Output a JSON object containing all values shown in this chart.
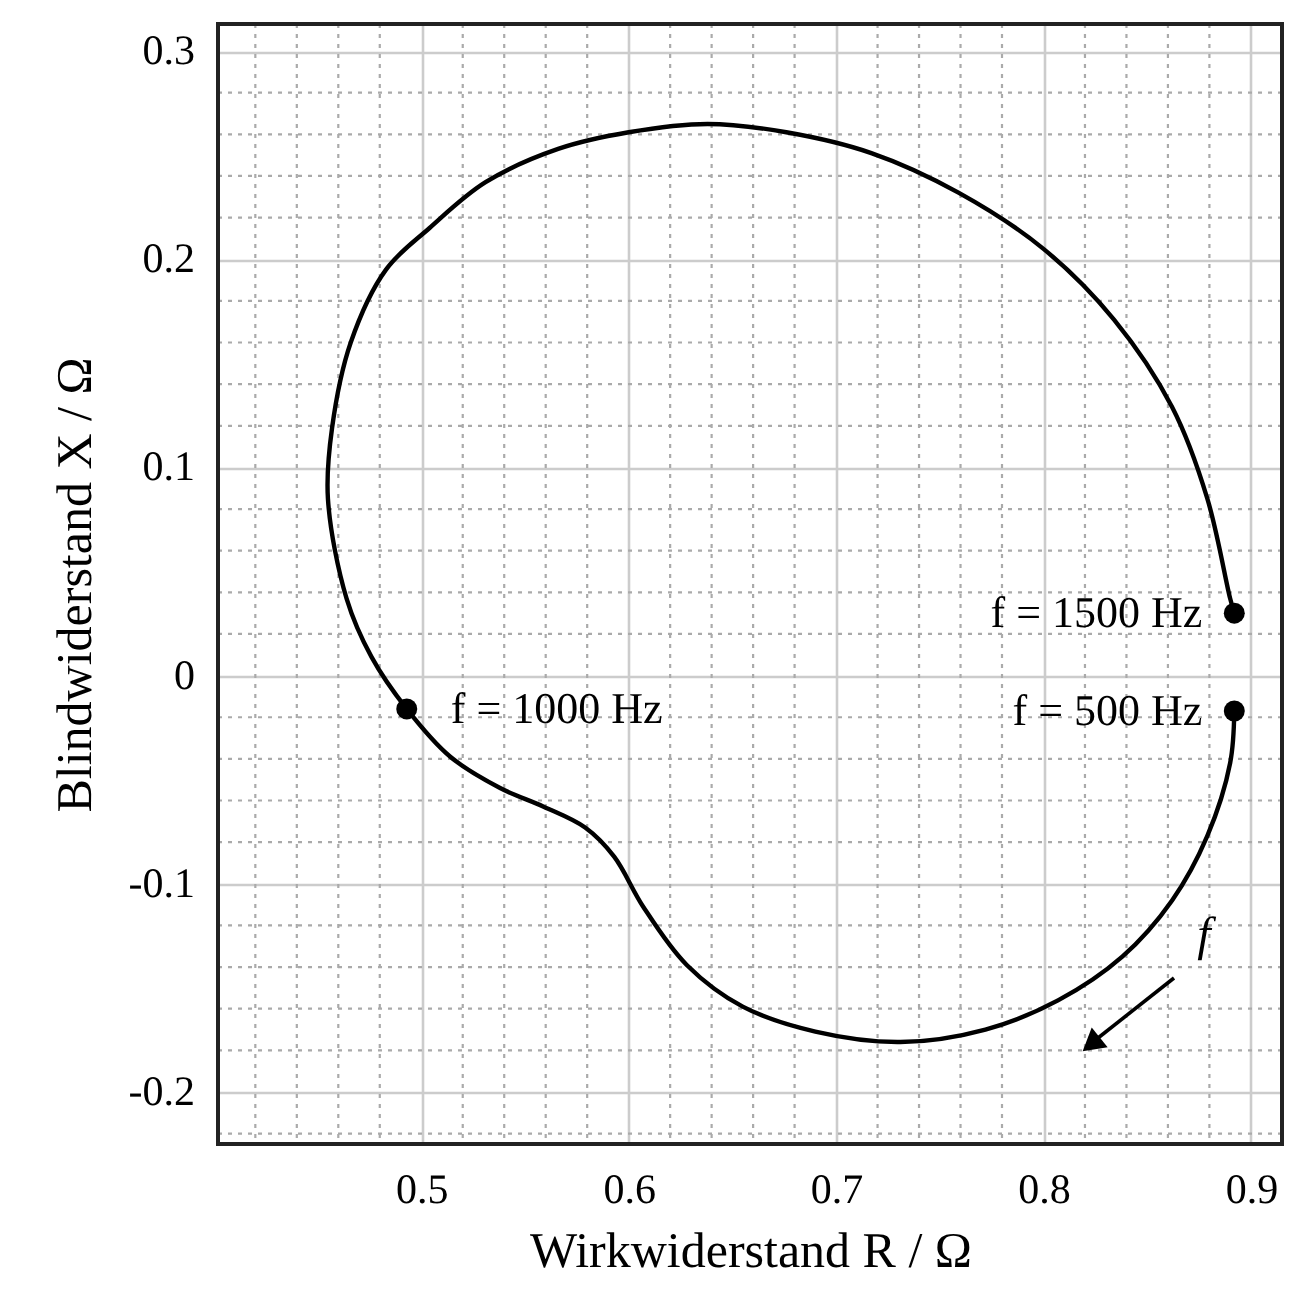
{
  "chart_data": {
    "type": "line",
    "xlabel": "Wirkwiderstand R / Ω",
    "ylabel": "Blindwiderstand X / Ω",
    "xlim": [
      0.402,
      0.915
    ],
    "ylim": [
      -0.225,
      0.313
    ],
    "xticks": [
      0.5,
      0.6,
      0.7,
      0.8,
      0.9
    ],
    "yticks": [
      -0.2,
      -0.1,
      0,
      0.1,
      0.2,
      0.3
    ],
    "grid": true,
    "series": [
      {
        "color": "#000000",
        "marker": "none",
        "x": [
          0.892,
          0.89,
          0.879,
          0.862,
          0.838,
          0.807,
          0.772,
          0.731,
          0.69,
          0.655,
          0.628,
          0.607,
          0.593,
          0.579,
          0.559,
          0.538,
          0.514,
          0.493,
          0.476,
          0.464,
          0.455,
          0.457,
          0.466,
          0.483,
          0.504,
          0.531,
          0.566,
          0.6,
          0.638,
          0.676,
          0.717,
          0.759,
          0.8,
          0.834,
          0.862,
          0.879,
          0.89,
          0.892
        ],
        "values": [
          -0.017,
          -0.042,
          -0.077,
          -0.108,
          -0.135,
          -0.156,
          -0.17,
          -0.176,
          -0.171,
          -0.159,
          -0.139,
          -0.111,
          -0.087,
          -0.073,
          -0.063,
          -0.054,
          -0.039,
          -0.016,
          0.009,
          0.037,
          0.085,
          0.119,
          0.16,
          0.195,
          0.215,
          0.237,
          0.253,
          0.261,
          0.265,
          0.261,
          0.251,
          0.232,
          0.205,
          0.171,
          0.129,
          0.085,
          0.037,
          0.03
        ]
      },
      {
        "type": "scatter",
        "color": "#000000",
        "marker": "circle",
        "x": [
          0.493,
          0.892,
          0.892
        ],
        "values": [
          -0.016,
          0.03,
          -0.017
        ]
      }
    ],
    "annotations": [
      "f = 1000 Hz",
      "f = 1500 Hz",
      "f = 500 Hz",
      "f"
    ]
  }
}
